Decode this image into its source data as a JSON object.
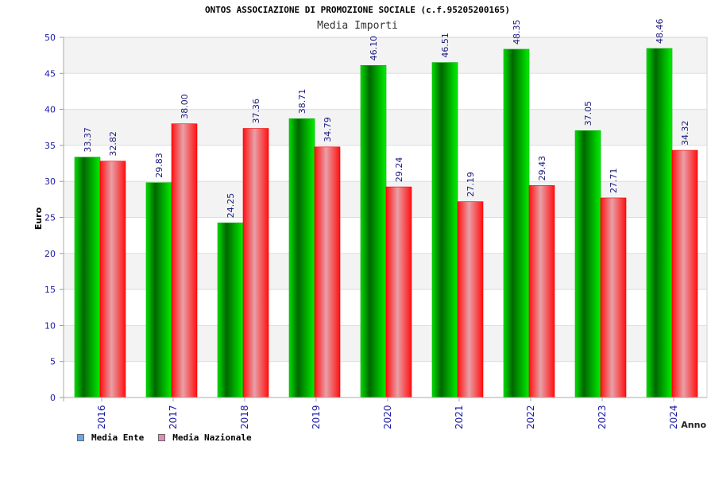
{
  "chart_data": {
    "type": "bar",
    "title": "ONTOS ASSOCIAZIONE DI PROMOZIONE SOCIALE (c.f.95205200165)",
    "subtitle": "Media Importi",
    "xlabel": "Anno",
    "ylabel": "Euro",
    "ylim": [
      0,
      50
    ],
    "yticks": [
      "0",
      "5",
      "10",
      "15",
      "20",
      "25",
      "30",
      "35",
      "40",
      "45",
      "50"
    ],
    "categories": [
      "2016",
      "2017",
      "2018",
      "2019",
      "2020",
      "2021",
      "2022",
      "2023",
      "2024"
    ],
    "series": [
      {
        "name": "Media Ente",
        "values": [
          33.37,
          29.83,
          24.25,
          38.71,
          46.1,
          46.51,
          48.35,
          37.05,
          48.46
        ],
        "labels": [
          "33.37",
          "29.83",
          "24.25",
          "38.71",
          "46.10",
          "46.51",
          "48.35",
          "37.05",
          "48.46"
        ]
      },
      {
        "name": "Media Nazionale",
        "values": [
          32.82,
          38.0,
          37.36,
          34.79,
          29.24,
          27.19,
          29.43,
          27.71,
          34.32
        ],
        "labels": [
          "32.82",
          "38.00",
          "37.36",
          "34.79",
          "29.24",
          "27.19",
          "29.43",
          "27.71",
          "34.32"
        ]
      }
    ],
    "legend": {
      "position": "bottom-left",
      "items": [
        {
          "label": "Media Ente",
          "color": "#6ca6e8"
        },
        {
          "label": "Media Nazionale",
          "color": "#e28ab8"
        }
      ]
    },
    "grid": true,
    "colors": {
      "ente": "#00c000",
      "nazionale": "#ff2020",
      "axis_text": "#1a1aa6",
      "label_text": "#1a1a80",
      "band": "#f3f3f3"
    }
  }
}
